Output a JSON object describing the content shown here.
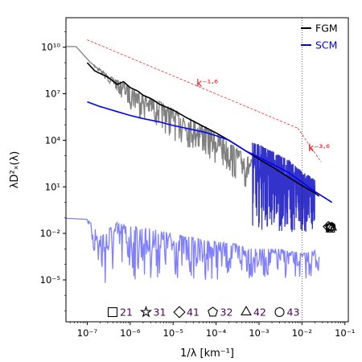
{
  "chart_data": {
    "type": "line",
    "xlabel": "1/λ [km⁻¹]",
    "ylabel": "λD²ₓ(λ)",
    "xscale": "log",
    "yscale": "log",
    "xlim": [
      3.2e-08,
      0.12
    ],
    "ylim": [
      2e-08,
      800000000000.0
    ],
    "grid": false,
    "x_ticks": [
      {
        "value": 1e-07,
        "label": "10⁻⁷"
      },
      {
        "value": 1e-06,
        "label": "10⁻⁶"
      },
      {
        "value": 1e-05,
        "label": "10⁻⁵"
      },
      {
        "value": 0.0001,
        "label": "10⁻⁴"
      },
      {
        "value": 0.001,
        "label": "10⁻³"
      },
      {
        "value": 0.01,
        "label": "10⁻²"
      },
      {
        "value": 0.1,
        "label": "10⁻¹"
      }
    ],
    "y_ticks": [
      {
        "value": 10000000000.0,
        "label": "10¹⁰"
      },
      {
        "value": 10000000.0,
        "label": "10⁷"
      },
      {
        "value": 10000.0,
        "label": "10⁴"
      },
      {
        "value": 10.0,
        "label": "10¹"
      },
      {
        "value": 0.01,
        "label": "10⁻²"
      },
      {
        "value": 1e-05,
        "label": "10⁻⁵"
      }
    ],
    "legend": {
      "placement": "top-right",
      "entries": [
        {
          "label": "FGM",
          "color": "#000000"
        },
        {
          "label": "SCM",
          "color": "#0000ff"
        }
      ]
    },
    "series": [
      {
        "name": "FGM",
        "color": "#000000",
        "x": [
          1e-07,
          1.5e-07,
          2e-07,
          3e-07,
          5e-07,
          7e-07,
          1e-06,
          1.5e-06,
          2e-06,
          3e-06,
          5e-06,
          1e-05,
          2e-05,
          5e-05,
          0.0001,
          0.0002,
          0.0005,
          0.001,
          0.002,
          0.005,
          0.01,
          0.02,
          0.025
        ],
        "y": [
          1000000000.0,
          300000000.0,
          200000000.0,
          120000000.0,
          40000000.0,
          60000000.0,
          25000000.0,
          15000000.0,
          8000000.0,
          5000000.0,
          2000000.0,
          900000.0,
          300000.0,
          80000.0,
          30000.0,
          10000.0,
          2000.0,
          600.0,
          200.0,
          40.0,
          12.0,
          4,
          2.5
        ]
      },
      {
        "name": "SCM",
        "color": "#0000ff",
        "x": [
          1e-07,
          2e-07,
          5e-07,
          1e-06,
          2e-06,
          5e-06,
          1e-05,
          2e-05,
          5e-05,
          0.0001,
          0.0002,
          0.0005,
          0.001,
          0.002,
          0.005,
          0.01,
          0.02,
          0.05
        ],
        "y": [
          3000000.0,
          1500000.0,
          700000.0,
          400000.0,
          250000.0,
          150000.0,
          90000.0,
          60000.0,
          35000.0,
          20000.0,
          10000.0,
          2000.0,
          800.0,
          300.0,
          80.0,
          20.0,
          5,
          1
        ]
      },
      {
        "color": "#808080",
        "x": [
          3.2e-08,
          5.5e-08,
          1.2e-07,
          2e-07,
          3e-07,
          5e-07,
          1e-06,
          2e-06,
          5e-06,
          1e-05,
          3e-05,
          0.0001,
          0.0003,
          0.0007
        ],
        "y": [
          11000000000.0,
          11000000000.0,
          1000000000.0,
          400000000.0,
          150000000.0,
          80000000.0,
          30000000.0,
          8000000.0,
          3000000.0,
          1000000.0,
          200000.0,
          30000.0,
          3000.0,
          500.0
        ],
        "min_envelope": [
          11000000000.0,
          11000000000.0,
          1000000000.0,
          200000000.0,
          60000000.0,
          10000000.0,
          1000000.0,
          200000.0,
          50000.0,
          10000.0,
          2000.0,
          200.0,
          20.0,
          3
        ]
      },
      {
        "color": "#7f7fff",
        "x": [
          2e-08,
          1e-07,
          2e-07,
          5e-07,
          1e-06,
          3e-06,
          1e-05,
          3e-05,
          0.0001,
          0.0003,
          0.001,
          0.003,
          0.01,
          0.025
        ],
        "y": [
          0.1,
          0.08,
          0.01,
          0.05,
          0.03,
          0.02,
          0.01,
          0.005,
          0.003,
          0.002,
          0.001,
          0.001,
          0.0005,
          0.001
        ],
        "min_envelope": [
          0.1,
          0.08,
          1e-06,
          1e-05,
          1e-05,
          1e-05,
          1e-05,
          1e-05,
          1e-05,
          1e-05,
          1e-05,
          1e-05,
          1e-05,
          1e-05
        ]
      },
      {
        "color": "#3333cc",
        "x": [
          0.0007,
          0.001,
          0.002,
          0.005,
          0.01,
          0.02
        ],
        "y": [
          7000.0,
          5000.0,
          2000.0,
          500.0,
          100.0,
          30.0
        ],
        "min_envelope": [
          0.01,
          0.01,
          0.01,
          0.01,
          0.01,
          0.01
        ]
      }
    ],
    "reference_lines": [
      {
        "label": "k⁻¹·⁶",
        "color": "#ff0000",
        "style": "dashed",
        "x": [
          1e-07,
          0.008
        ],
        "y": [
          30000000000.0,
          60000.0
        ],
        "label_x": 3.5e-05,
        "label_y": 30000000.0
      },
      {
        "label": "k⁻³·⁶",
        "color": "#ff0000",
        "style": "dashed",
        "x": [
          0.008,
          0.028
        ],
        "y": [
          60000.0,
          400.0
        ],
        "label_x": 0.014,
        "label_y": 2000.0
      }
    ],
    "vertical_lines": [
      {
        "x": 0.01,
        "color": "#000000",
        "style": "dotted"
      }
    ],
    "markers": [
      {
        "x": 0.046,
        "y": 0.022,
        "shape": "square"
      },
      {
        "x": 0.043,
        "y": 0.025,
        "shape": "star"
      },
      {
        "x": 0.041,
        "y": 0.027,
        "shape": "diamond"
      },
      {
        "x": 0.045,
        "y": 0.025,
        "shape": "pentagon"
      },
      {
        "x": 0.05,
        "y": 0.024,
        "shape": "triangle"
      },
      {
        "x": 0.048,
        "y": 0.026,
        "shape": "circle"
      }
    ],
    "marker_legend": [
      {
        "shape": "square",
        "label": "21"
      },
      {
        "shape": "star",
        "label": "31"
      },
      {
        "shape": "diamond",
        "label": "41"
      },
      {
        "shape": "pentagon",
        "label": "32"
      },
      {
        "shape": "triangle",
        "label": "42"
      },
      {
        "shape": "circle",
        "label": "43"
      }
    ],
    "marker_legend_color": "#4b0055"
  }
}
